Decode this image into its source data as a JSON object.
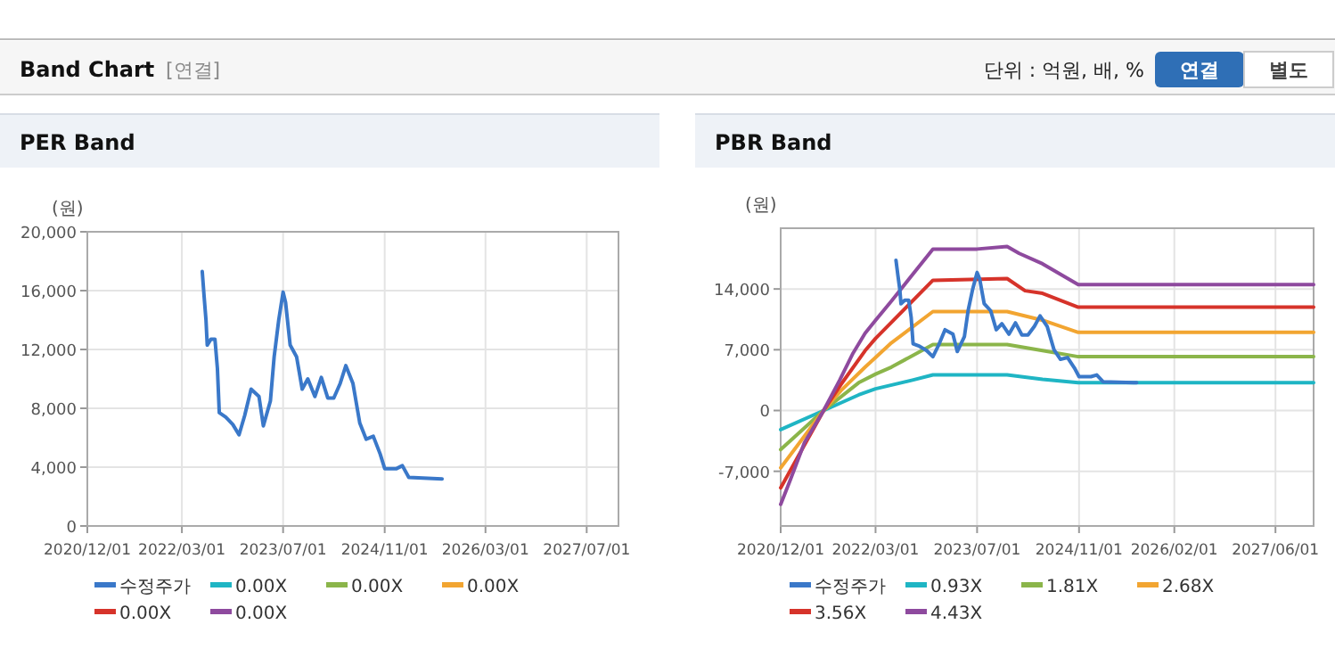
{
  "chart_data": [
    {
      "type": "other",
      "title": "Band Chart",
      "annotations": [
        "[연결]",
        "단위 : 억원, 배, %",
        "연결",
        "별도"
      ]
    },
    {
      "type": "line",
      "title": "PER Band",
      "ylabel": "(원)",
      "xlim": [
        "2020-12-01",
        "2027-12-01"
      ],
      "ylim": [
        0,
        20000
      ],
      "xticks": [
        {
          "value": "2020-12-01",
          "label": "2020/12/01"
        },
        {
          "value": "2022-03-01",
          "label": "2022/03/01"
        },
        {
          "value": "2023-07-01",
          "label": "2023/07/01"
        },
        {
          "value": "2024-11-01",
          "label": "2024/11/01"
        },
        {
          "value": "2026-03-01",
          "label": "2026/03/01"
        },
        {
          "value": "2027-07-01",
          "label": "2027/07/01"
        }
      ],
      "yticks": [
        0,
        {
          "value": 4000,
          "label": "4,000"
        },
        {
          "value": 8000,
          "label": "8,000"
        },
        {
          "value": 12000,
          "label": "12,000"
        },
        {
          "value": 16000,
          "label": "16,000"
        },
        {
          "value": 20000,
          "label": "20,000"
        }
      ],
      "grid": true,
      "legend": "bottom",
      "series": [
        {
          "name": "수정주가",
          "color": "#3a78c9",
          "x": [
            "2022-06-07",
            "2022-06-16",
            "2022-06-25",
            "2022-07-01",
            "2022-07-19",
            "2022-08-07",
            "2022-08-19",
            "2022-08-28",
            "2022-09-28",
            "2022-11-01",
            "2022-12-01",
            "2022-12-28",
            "2023-01-28",
            "2023-03-07",
            "2023-03-28",
            "2023-05-01",
            "2023-05-19",
            "2023-06-10",
            "2023-07-01",
            "2023-07-13",
            "2023-08-04",
            "2023-09-04",
            "2023-10-01",
            "2023-10-28",
            "2023-12-01",
            "2024-01-01",
            "2024-02-01",
            "2024-03-01",
            "2024-04-01",
            "2024-04-28",
            "2024-06-01",
            "2024-07-04",
            "2024-08-04",
            "2024-09-07",
            "2024-10-10",
            "2024-11-01",
            "2024-12-28",
            "2025-01-25",
            "2025-02-25",
            "2025-08-04"
          ],
          "values": [
            17300,
            15600,
            14000,
            12300,
            12700,
            12700,
            10700,
            7700,
            7400,
            6900,
            6200,
            7500,
            9300,
            8800,
            6800,
            8500,
            11500,
            14000,
            15900,
            15200,
            12300,
            11500,
            9300,
            10000,
            8800,
            10100,
            8700,
            8700,
            9700,
            10900,
            9700,
            7000,
            5900,
            6100,
            4900,
            3900,
            3900,
            4100,
            3300,
            3200
          ]
        },
        {
          "name": "0.00X",
          "color": "#1fb5c4"
        },
        {
          "name": "0.00X",
          "color": "#8bb54a"
        },
        {
          "name": "0.00X",
          "color": "#f2a531"
        },
        {
          "name": "0.00X",
          "color": "#d6332a"
        },
        {
          "name": "0.00X",
          "color": "#8e4a9e"
        }
      ]
    },
    {
      "type": "line",
      "title": "PBR Band",
      "ylabel": "(원)",
      "xlim": [
        "2020-12-01",
        "2027-12-01"
      ],
      "ylim": [
        -13300,
        21000
      ],
      "xticks": [
        {
          "value": "2020-12-01",
          "label": "2020/12/01"
        },
        {
          "value": "2022-03-01",
          "label": "2022/03/01"
        },
        {
          "value": "2023-07-01",
          "label": "2023/07/01"
        },
        {
          "value": "2024-11-01",
          "label": "2024/11/01"
        },
        {
          "value": "2026-02-01",
          "label": "2026/02/01"
        },
        {
          "value": "2027-06-01",
          "label": "2027/06/01"
        }
      ],
      "yticks": [
        {
          "value": -7000,
          "label": "-7,000"
        },
        0,
        {
          "value": 7000,
          "label": "7,000"
        },
        {
          "value": 14000,
          "label": "14,000"
        }
      ],
      "grid": true,
      "legend": "bottom",
      "series": [
        {
          "name": "수정주가",
          "color": "#3a78c9",
          "x": [
            "2022-06-07",
            "2022-06-16",
            "2022-06-25",
            "2022-07-01",
            "2022-07-19",
            "2022-08-07",
            "2022-08-19",
            "2022-08-28",
            "2022-09-28",
            "2022-11-01",
            "2022-12-01",
            "2022-12-28",
            "2023-01-28",
            "2023-03-07",
            "2023-03-28",
            "2023-05-01",
            "2023-05-19",
            "2023-06-10",
            "2023-07-01",
            "2023-07-13",
            "2023-08-04",
            "2023-09-04",
            "2023-10-01",
            "2023-10-28",
            "2023-12-01",
            "2024-01-01",
            "2024-02-01",
            "2024-03-01",
            "2024-04-01",
            "2024-04-28",
            "2024-06-01",
            "2024-07-04",
            "2024-08-04",
            "2024-09-07",
            "2024-10-10",
            "2024-11-01",
            "2024-12-28",
            "2025-01-25",
            "2025-02-25",
            "2025-08-04"
          ],
          "values": [
            17300,
            15600,
            14000,
            12300,
            12700,
            12700,
            10700,
            7700,
            7400,
            6900,
            6200,
            7500,
            9300,
            8800,
            6800,
            8500,
            11500,
            14000,
            15900,
            15200,
            12300,
            11500,
            9300,
            10000,
            8800,
            10100,
            8700,
            8700,
            9700,
            10900,
            9700,
            7000,
            5900,
            6100,
            4900,
            3900,
            3900,
            4100,
            3300,
            3200
          ]
        },
        {
          "name": "0.93X",
          "color": "#1fb5c4",
          "x": [
            "2020-12-01",
            "2021-06-25",
            "2021-12-10",
            "2022-03-01",
            "2022-08-25",
            "2022-12-01",
            "2023-11-22",
            "2024-05-10",
            "2024-10-28",
            "2027-12-01"
          ],
          "values": [
            -2200,
            0,
            1800,
            2500,
            3500,
            4100,
            4100,
            3600,
            3200,
            3200
          ]
        },
        {
          "name": "1.81X",
          "color": "#8bb54a",
          "x": [
            "2020-12-01",
            "2021-06-25",
            "2021-12-10",
            "2022-03-01",
            "2022-05-16",
            "2022-12-01",
            "2023-11-22",
            "2024-05-10",
            "2024-10-28",
            "2027-12-01"
          ],
          "values": [
            -4500,
            0,
            3200,
            4200,
            5000,
            7600,
            7600,
            6900,
            6200,
            6200
          ]
        },
        {
          "name": "2.68X",
          "color": "#f2a531",
          "x": [
            "2020-12-01",
            "2021-06-25",
            "2021-09-16",
            "2022-01-10",
            "2022-03-01",
            "2022-05-16",
            "2022-12-01",
            "2023-11-22",
            "2024-05-10",
            "2024-10-28",
            "2027-12-01"
          ],
          "values": [
            -6600,
            0,
            2300,
            5000,
            6100,
            7800,
            11400,
            11400,
            10400,
            9000,
            9000
          ]
        },
        {
          "name": "3.56X",
          "color": "#d6332a",
          "x": [
            "2020-12-01",
            "2021-06-25",
            "2021-09-16",
            "2022-01-10",
            "2022-03-01",
            "2022-12-01",
            "2023-11-22",
            "2024-02-16",
            "2024-05-10",
            "2024-10-28",
            "2027-12-01"
          ],
          "values": [
            -8900,
            0,
            3000,
            6900,
            8300,
            15000,
            15200,
            13800,
            13500,
            11900,
            11900
          ]
        },
        {
          "name": "4.43X",
          "color": "#8e4a9e",
          "x": [
            "2020-12-01",
            "2021-01-13",
            "2021-03-25",
            "2021-06-25",
            "2021-09-10",
            "2021-11-13",
            "2022-01-10",
            "2022-03-01",
            "2022-05-16",
            "2022-08-10",
            "2022-12-01",
            "2023-07-01",
            "2023-11-22",
            "2024-01-19",
            "2024-05-10",
            "2024-10-28",
            "2027-12-01"
          ],
          "values": [
            -10800,
            -8200,
            -3700,
            0,
            3500,
            6600,
            8900,
            10400,
            12600,
            15200,
            18600,
            18600,
            18900,
            18100,
            16900,
            14500,
            14500
          ]
        }
      ]
    }
  ]
}
